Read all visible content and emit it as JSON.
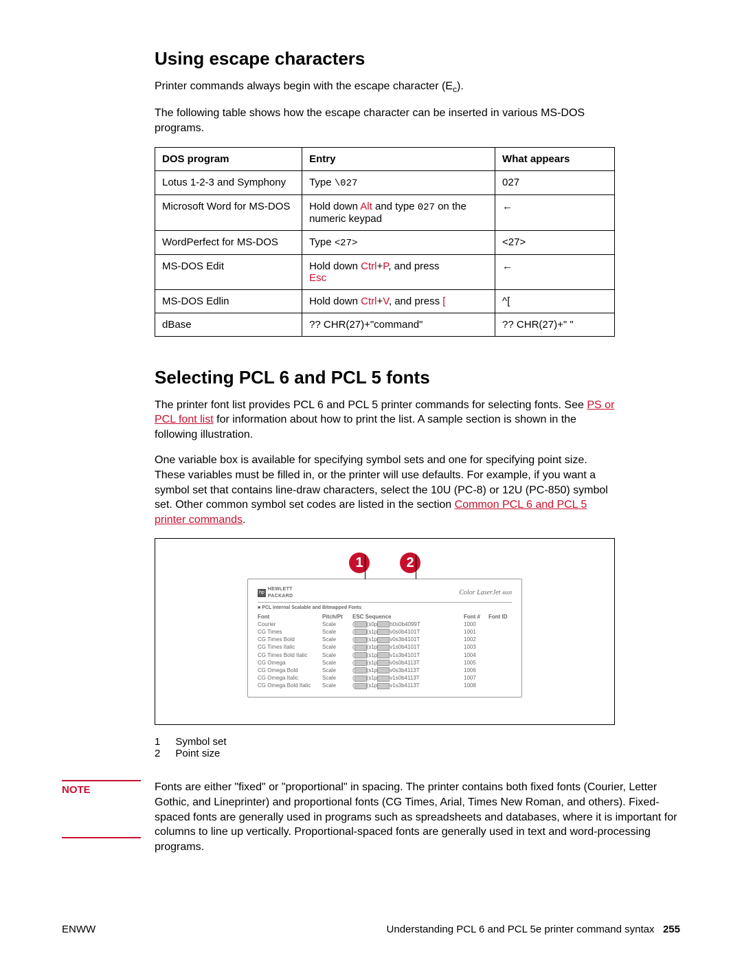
{
  "section1": {
    "heading": "Using escape characters",
    "para1_pre": "Printer commands always begin with the escape character (E",
    "para1_sub": "c",
    "para1_post": ").",
    "para2": "The following table shows how the escape character can be inserted in various MS-DOS programs."
  },
  "table": {
    "headers": {
      "c1": "DOS program",
      "c2": "Entry",
      "c3": "What appears"
    },
    "rows": [
      {
        "program": "Lotus 1-2-3 and Symphony",
        "entry_pre": "Type ",
        "entry_mono": "\\027",
        "entry_post": "",
        "appears": "027"
      },
      {
        "program": "Microsoft Word for MS-DOS",
        "entry_pre": "Hold down ",
        "key": "Alt",
        "entry_mid": " and type ",
        "entry_mono": "027",
        "entry_post": " on the numeric keypad",
        "appears": "←"
      },
      {
        "program": "WordPerfect for MS-DOS",
        "entry_pre": "Type ",
        "entry_mono": "<27>",
        "entry_post": "",
        "appears": "<27>"
      },
      {
        "program": "MS-DOS Edit",
        "entry_pre": "Hold down ",
        "key": "Ctrl",
        "entry_mid": "+",
        "key2": "P",
        "entry_post": ", and press ",
        "key3": "Esc",
        "appears": "←"
      },
      {
        "program": "MS-DOS Edlin",
        "entry_pre": "Hold down ",
        "key": "Ctrl",
        "entry_mid": "+",
        "key2": "V",
        "entry_post": ", and press ",
        "key3": "[",
        "appears": "^["
      },
      {
        "program": "dBase",
        "entry_plain": "?? CHR(27)+\"command\"",
        "appears": "?? CHR(27)+\" \""
      }
    ]
  },
  "section2": {
    "heading": "Selecting PCL 6 and PCL 5 fonts",
    "para1_pre": "The printer font list provides PCL 6 and PCL 5 printer commands for selecting fonts. See ",
    "link1": "PS or PCL font list",
    "para1_post": " for information about how to print the list. A sample section is shown in the following illustration.",
    "para2_pre": "One variable box is available for specifying symbol sets and one for specifying point size. These variables must be filled in, or the printer will use defaults. For example, if you want a symbol set that contains line-draw characters, select the 10U (PC-8) or 12U (PC-850) symbol set. Other common symbol set codes are listed in the section ",
    "link2": "Common PCL 6 and PCL 5 printer commands",
    "para2_post": "."
  },
  "callouts": {
    "one": "1",
    "two": "2"
  },
  "sample": {
    "hp": "HEWLETT",
    "packard": "PACKARD",
    "product": "Color LaserJet",
    "model": "4600",
    "subtitle": "■ PCL Internal Scalable and Bitmapped Fonts",
    "hdr_a": "Font",
    "hdr_b": "Pitch/Pt",
    "hdr_c": "ESC Sequence",
    "hdr_d": "Font #",
    "hdr_e": "Font ID",
    "rows": [
      {
        "a": "Courier",
        "b": "Scale",
        "c": "<esc>(",
        "c2": "<esc>(s0p",
        "c3": "h0s0b4099T",
        "d": "1000",
        "e": ""
      },
      {
        "a": "CG Times",
        "b": "Scale",
        "c": "<esc>(",
        "c2": "<esc>(s1p",
        "c3": "v0s0b4101T",
        "d": "1001",
        "e": ""
      },
      {
        "a": "CG Times Bold",
        "b": "Scale",
        "c": "<esc>(",
        "c2": "<esc>(s1p",
        "c3": "v0s3b4101T",
        "d": "1002",
        "e": ""
      },
      {
        "a": "CG Times Italic",
        "b": "Scale",
        "c": "<esc>(",
        "c2": "<esc>(s1p",
        "c3": "v1s0b4101T",
        "d": "1003",
        "e": ""
      },
      {
        "a": "CG Times Bold Italic",
        "b": "Scale",
        "c": "<esc>(",
        "c2": "<esc>(s1p",
        "c3": "v1s3b4101T",
        "d": "1004",
        "e": ""
      },
      {
        "a": "CG Omega",
        "b": "Scale",
        "c": "<esc>(",
        "c2": "<esc>(s1p",
        "c3": "v0s0b4113T",
        "d": "1005",
        "e": ""
      },
      {
        "a": "CG Omega Bold",
        "b": "Scale",
        "c": "<esc>(",
        "c2": "<esc>(s1p",
        "c3": "v0s3b4113T",
        "d": "1006",
        "e": ""
      },
      {
        "a": "CG Omega Italic",
        "b": "Scale",
        "c": "<esc>(",
        "c2": "<esc>(s1p",
        "c3": "v1s0b4113T",
        "d": "1007",
        "e": ""
      },
      {
        "a": "CG Omega Bold Italic",
        "b": "Scale",
        "c": "<esc>(",
        "c2": "<esc>(s1p",
        "c3": "v1s3b4113T",
        "d": "1008",
        "e": ""
      }
    ]
  },
  "legend": {
    "l1n": "1",
    "l1t": "Symbol set",
    "l2n": "2",
    "l2t": "Point size"
  },
  "note": {
    "label": "NOTE",
    "text": "Fonts are either \"fixed\" or \"proportional\" in spacing. The printer contains both fixed fonts (Courier, Letter Gothic, and Lineprinter) and proportional fonts (CG Times, Arial, Times New Roman, and others). Fixed-spaced fonts are generally used in programs such as spreadsheets and databases, where it is important for columns to line up vertically. Proportional-spaced fonts are generally used in text and word-processing programs."
  },
  "footer": {
    "left": "ENWW",
    "right_text": "Understanding PCL 6 and PCL 5e printer command syntax",
    "page": "255"
  }
}
